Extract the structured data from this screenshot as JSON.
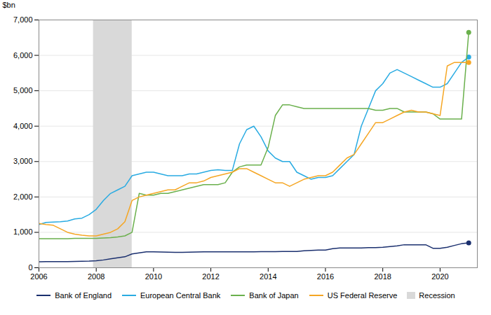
{
  "chart_data": {
    "type": "line",
    "ylabel": "$bn",
    "xlim": [
      2006.0,
      2021.3
    ],
    "xticks": [
      2006,
      2008,
      2010,
      2012,
      2014,
      2016,
      2018,
      2020
    ],
    "ylim": [
      0,
      7000
    ],
    "yticks": [
      0,
      {
        "value": 1000,
        "label": "1,000"
      },
      {
        "value": 2000,
        "label": "2,000"
      },
      {
        "value": 3000,
        "label": "3,000"
      },
      {
        "value": 4000,
        "label": "4,000"
      },
      {
        "value": 5000,
        "label": "5,000"
      },
      {
        "value": 6000,
        "label": "6,000"
      },
      {
        "value": 7000,
        "label": "7,000"
      }
    ],
    "grid": true,
    "legend": "bottom",
    "shaded_span": {
      "label": "Recession",
      "start": 2007.9,
      "end": 2009.25,
      "color": "#d9d9d9"
    },
    "x": [
      2006.0,
      2006.25,
      2006.5,
      2006.75,
      2007.0,
      2007.25,
      2007.5,
      2007.75,
      2008.0,
      2008.25,
      2008.5,
      2008.75,
      2009.0,
      2009.25,
      2009.5,
      2009.75,
      2010.0,
      2010.25,
      2010.5,
      2010.75,
      2011.0,
      2011.25,
      2011.5,
      2011.75,
      2012.0,
      2012.25,
      2012.5,
      2012.75,
      2013.0,
      2013.25,
      2013.5,
      2013.75,
      2014.0,
      2014.25,
      2014.5,
      2014.75,
      2015.0,
      2015.25,
      2015.5,
      2015.75,
      2016.0,
      2016.25,
      2016.5,
      2016.75,
      2017.0,
      2017.25,
      2017.5,
      2017.75,
      2018.0,
      2018.25,
      2018.5,
      2018.75,
      2019.0,
      2019.25,
      2019.5,
      2019.75,
      2020.0,
      2020.25,
      2020.5,
      2020.75,
      2021.0
    ],
    "series": [
      {
        "name": "Bank of England",
        "color": "#1a2f6e",
        "values": [
          170,
          175,
          175,
          175,
          175,
          180,
          185,
          190,
          200,
          220,
          250,
          280,
          310,
          390,
          420,
          450,
          450,
          445,
          440,
          435,
          435,
          440,
          445,
          450,
          450,
          450,
          450,
          450,
          450,
          450,
          450,
          455,
          455,
          455,
          460,
          460,
          460,
          480,
          490,
          500,
          500,
          540,
          560,
          560,
          560,
          560,
          570,
          570,
          580,
          600,
          620,
          650,
          650,
          650,
          650,
          550,
          550,
          580,
          630,
          680,
          700
        ],
        "end_dot": {
          "x": 2021.0,
          "y": 700
        }
      },
      {
        "name": "European Central Bank",
        "color": "#29abe2",
        "values": [
          1220,
          1280,
          1290,
          1300,
          1320,
          1380,
          1400,
          1500,
          1650,
          1900,
          2100,
          2200,
          2300,
          2600,
          2650,
          2700,
          2700,
          2650,
          2600,
          2600,
          2600,
          2650,
          2650,
          2700,
          2750,
          2770,
          2750,
          2750,
          3500,
          3900,
          4000,
          3700,
          3300,
          3100,
          3000,
          3000,
          2700,
          2600,
          2500,
          2550,
          2550,
          2600,
          2800,
          3000,
          3200,
          4000,
          4500,
          5000,
          5200,
          5500,
          5600,
          5500,
          5400,
          5300,
          5200,
          5100,
          5100,
          5200,
          5500,
          5800,
          5950
        ],
        "end_dot": {
          "x": 2021.0,
          "y": 5950
        }
      },
      {
        "name": "Bank of Japan",
        "color": "#6ab04c",
        "values": [
          820,
          820,
          820,
          820,
          820,
          830,
          830,
          830,
          830,
          840,
          850,
          870,
          900,
          1000,
          2100,
          2050,
          2050,
          2100,
          2100,
          2150,
          2200,
          2250,
          2300,
          2350,
          2350,
          2350,
          2400,
          2700,
          2850,
          2900,
          2900,
          2900,
          3400,
          4300,
          4600,
          4600,
          4550,
          4500,
          4500,
          4500,
          4500,
          4500,
          4500,
          4500,
          4500,
          4500,
          4500,
          4450,
          4450,
          4500,
          4500,
          4400,
          4400,
          4400,
          4400,
          4350,
          4200,
          4200,
          4200,
          4200,
          6650
        ],
        "end_dot": {
          "x": 2021.0,
          "y": 6650
        }
      },
      {
        "name": "US Federal Reserve",
        "color": "#f5a623",
        "values": [
          1250,
          1220,
          1200,
          1100,
          1000,
          950,
          920,
          900,
          900,
          950,
          1000,
          1100,
          1300,
          1900,
          2000,
          2050,
          2100,
          2150,
          2200,
          2200,
          2300,
          2400,
          2400,
          2450,
          2550,
          2600,
          2650,
          2700,
          2800,
          2800,
          2700,
          2600,
          2500,
          2400,
          2400,
          2300,
          2400,
          2500,
          2550,
          2600,
          2600,
          2700,
          2900,
          3100,
          3200,
          3500,
          3800,
          4100,
          4100,
          4200,
          4300,
          4400,
          4450,
          4400,
          4400,
          4350,
          4300,
          5700,
          5800,
          5800,
          5800
        ],
        "end_dot": {
          "x": 2021.0,
          "y": 5800
        }
      }
    ]
  }
}
